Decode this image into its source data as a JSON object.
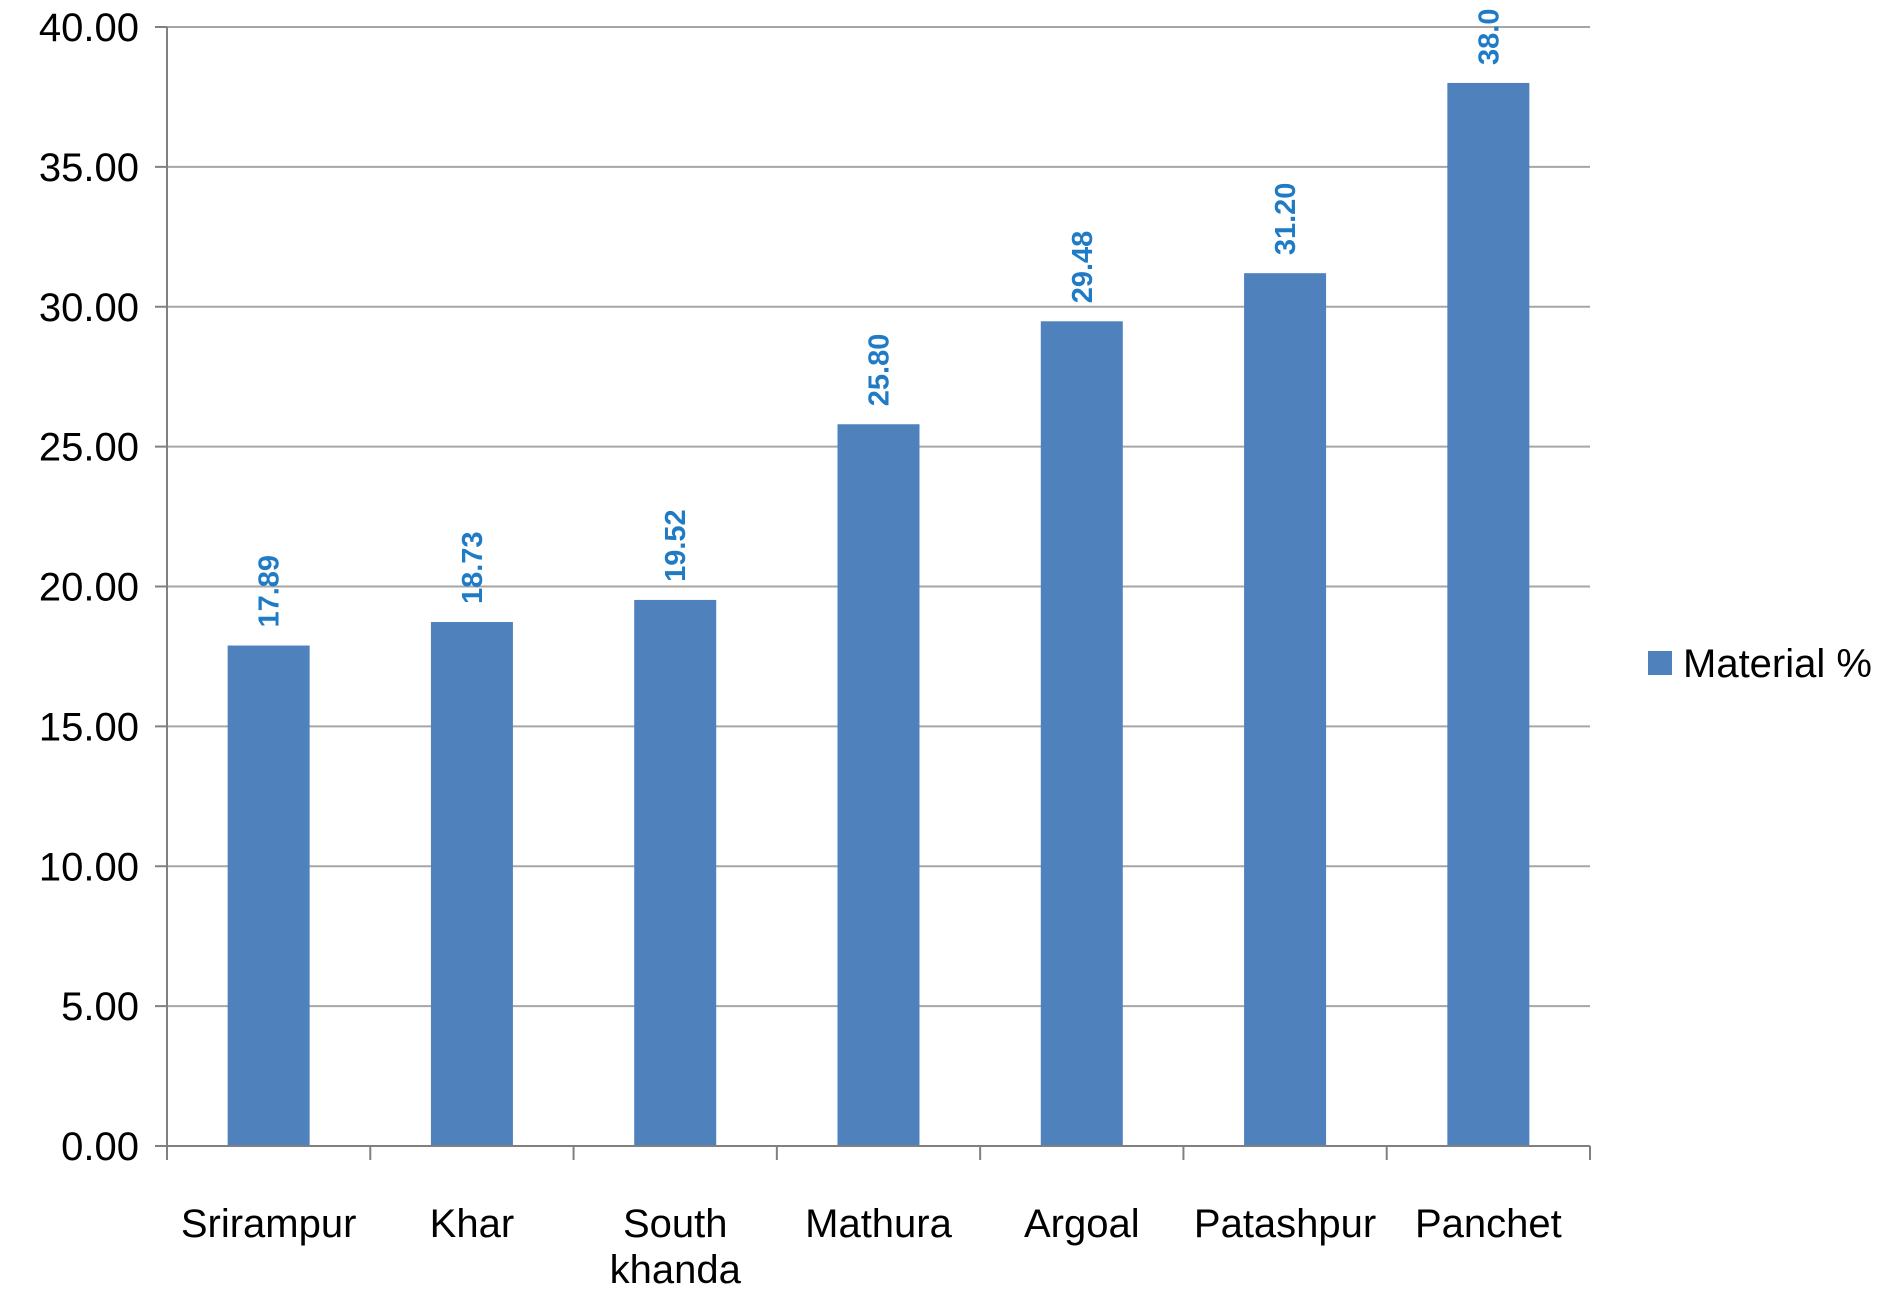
{
  "chart_data": {
    "type": "bar",
    "categories": [
      "Srirampur",
      "Khar",
      "South khanda",
      "Mathura",
      "Argoal",
      "Patashpur",
      "Panchet"
    ],
    "category_label_lines": [
      [
        "Srirampur"
      ],
      [
        "Khar"
      ],
      [
        "South",
        "khanda"
      ],
      [
        "Mathura"
      ],
      [
        "Argoal"
      ],
      [
        "Patashpur"
      ],
      [
        "Panchet"
      ]
    ],
    "series": [
      {
        "name": "Material %",
        "values": [
          17.89,
          18.73,
          19.52,
          25.8,
          29.48,
          31.2,
          38.0
        ],
        "labels": [
          "17.89",
          "18.73",
          "19.52",
          "25.80",
          "29.48",
          "31.20",
          "38.0"
        ]
      }
    ],
    "yticks": [
      "0.00",
      "5.00",
      "10.00",
      "15.00",
      "20.00",
      "25.00",
      "30.00",
      "35.00",
      "40.00"
    ],
    "ylim": [
      0,
      40
    ],
    "grid": true,
    "legend": "right",
    "colors": {
      "bar": "#4F81BD",
      "data_label": "#1F7BC6",
      "grid": "#A6A6A6",
      "axis": "#808080"
    }
  }
}
